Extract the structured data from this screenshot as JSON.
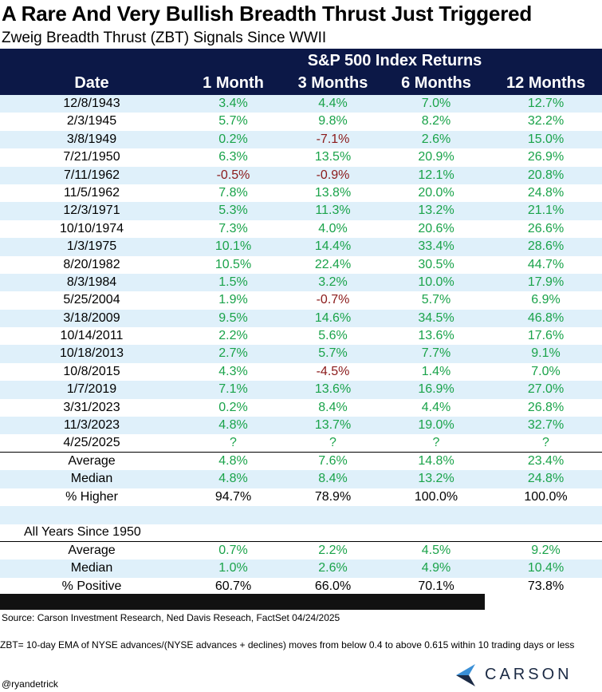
{
  "title": "A Rare And Very Bullish Breadth Thrust Just Triggered",
  "subtitle": "Zweig Breadth Thrust (ZBT) Signals Since WWII",
  "header": {
    "group_title": "S&P 500 Index Returns",
    "columns": [
      "Date",
      "1 Month",
      "3 Months",
      "6 Months",
      "12 Months"
    ]
  },
  "signals": [
    {
      "date": "12/8/1943",
      "m1": "3.4%",
      "m3": "4.4%",
      "m6": "7.0%",
      "m12": "12.7%"
    },
    {
      "date": "2/3/1945",
      "m1": "5.7%",
      "m3": "9.8%",
      "m6": "8.2%",
      "m12": "32.2%"
    },
    {
      "date": "3/8/1949",
      "m1": "0.2%",
      "m3": "-7.1%",
      "m6": "2.6%",
      "m12": "15.0%"
    },
    {
      "date": "7/21/1950",
      "m1": "6.3%",
      "m3": "13.5%",
      "m6": "20.9%",
      "m12": "26.9%"
    },
    {
      "date": "7/11/1962",
      "m1": "-0.5%",
      "m3": "-0.9%",
      "m6": "12.1%",
      "m12": "20.8%"
    },
    {
      "date": "11/5/1962",
      "m1": "7.8%",
      "m3": "13.8%",
      "m6": "20.0%",
      "m12": "24.8%"
    },
    {
      "date": "12/3/1971",
      "m1": "5.3%",
      "m3": "11.3%",
      "m6": "13.2%",
      "m12": "21.1%"
    },
    {
      "date": "10/10/1974",
      "m1": "7.3%",
      "m3": "4.0%",
      "m6": "20.6%",
      "m12": "26.6%"
    },
    {
      "date": "1/3/1975",
      "m1": "10.1%",
      "m3": "14.4%",
      "m6": "33.4%",
      "m12": "28.6%"
    },
    {
      "date": "8/20/1982",
      "m1": "10.5%",
      "m3": "22.4%",
      "m6": "30.5%",
      "m12": "44.7%"
    },
    {
      "date": "8/3/1984",
      "m1": "1.5%",
      "m3": "3.2%",
      "m6": "10.0%",
      "m12": "17.9%"
    },
    {
      "date": "5/25/2004",
      "m1": "1.9%",
      "m3": "-0.7%",
      "m6": "5.7%",
      "m12": "6.9%"
    },
    {
      "date": "3/18/2009",
      "m1": "9.5%",
      "m3": "14.6%",
      "m6": "34.5%",
      "m12": "46.8%"
    },
    {
      "date": "10/14/2011",
      "m1": "2.2%",
      "m3": "5.6%",
      "m6": "13.6%",
      "m12": "17.6%"
    },
    {
      "date": "10/18/2013",
      "m1": "2.7%",
      "m3": "5.7%",
      "m6": "7.7%",
      "m12": "9.1%"
    },
    {
      "date": "10/8/2015",
      "m1": "4.3%",
      "m3": "-4.5%",
      "m6": "1.4%",
      "m12": "7.0%"
    },
    {
      "date": "1/7/2019",
      "m1": "7.1%",
      "m3": "13.6%",
      "m6": "16.9%",
      "m12": "27.0%"
    },
    {
      "date": "3/31/2023",
      "m1": "0.2%",
      "m3": "8.4%",
      "m6": "4.4%",
      "m12": "26.8%"
    },
    {
      "date": "11/3/2023",
      "m1": "4.8%",
      "m3": "13.7%",
      "m6": "19.0%",
      "m12": "32.7%"
    },
    {
      "date": "4/25/2025",
      "m1": "?",
      "m3": "?",
      "m6": "?",
      "m12": "?"
    }
  ],
  "summary": [
    {
      "label": "Average",
      "m1": "4.8%",
      "m3": "7.6%",
      "m6": "14.8%",
      "m12": "23.4%",
      "style": "pos"
    },
    {
      "label": "Median",
      "m1": "4.8%",
      "m3": "8.4%",
      "m6": "13.2%",
      "m12": "24.8%",
      "style": "pos"
    },
    {
      "label": "% Higher",
      "m1": "94.7%",
      "m3": "78.9%",
      "m6": "100.0%",
      "m12": "100.0%",
      "style": "plain"
    }
  ],
  "all_years_label": "All Years Since 1950",
  "all_years": [
    {
      "label": "Average",
      "m1": "0.7%",
      "m3": "2.2%",
      "m6": "4.5%",
      "m12": "9.2%",
      "style": "pos"
    },
    {
      "label": "Median",
      "m1": "1.0%",
      "m3": "2.6%",
      "m6": "4.9%",
      "m12": "10.4%",
      "style": "pos"
    },
    {
      "label": "% Positive",
      "m1": "60.7%",
      "m3": "66.0%",
      "m6": "70.1%",
      "m12": "73.8%",
      "style": "plain"
    }
  ],
  "source": "Source: Carson Investment Research, Ned Davis Reseach, FactSet 04/24/2025",
  "footnote": "ZBT= 10-day EMA of NYSE advances/(NYSE advances + declines) moves from below 0.4 to above 0.615 within 10 trading days or less",
  "logo_text": "CARSON",
  "handle": "@ryandetrick",
  "colors": {
    "header_bg": "#0c1847",
    "stripe": "#dff0fa",
    "positive": "#1aa34a",
    "negative": "#8b1a1a",
    "logo_blue": "#3a8fd6",
    "logo_navy": "#1b2a44"
  }
}
